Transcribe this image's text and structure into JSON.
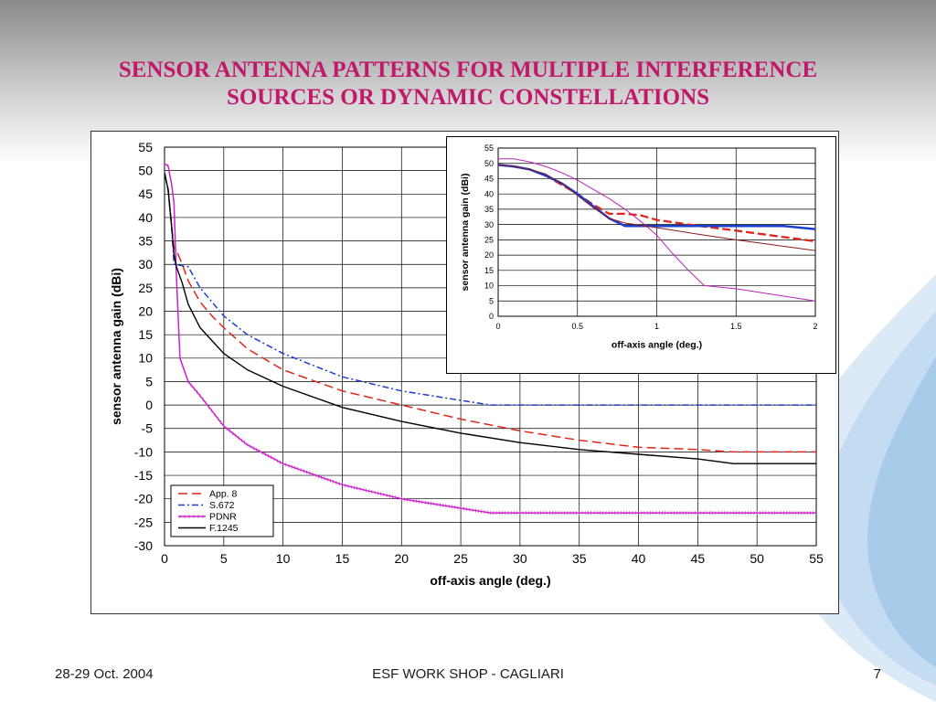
{
  "slide": {
    "title_line1": "SENSOR ANTENNA PATTERNS FOR MULTIPLE INTERFERENCE",
    "title_line2": "SOURCES OR DYNAMIC CONSTELLATIONS",
    "footer_left": "28-29 Oct. 2004",
    "footer_center": "ESF WORK SHOP - CAGLIARI",
    "footer_right": "7"
  },
  "chart_data": [
    {
      "type": "line",
      "xlabel": "off-axis angle (deg.)",
      "ylabel": "sensor antenna gain (dBi)",
      "xlim": [
        0,
        55
      ],
      "ylim": [
        -30,
        55
      ],
      "xticks": [
        0,
        5,
        10,
        15,
        20,
        25,
        30,
        35,
        40,
        45,
        50,
        55
      ],
      "yticks": [
        -30,
        -25,
        -20,
        -15,
        -10,
        -5,
        0,
        5,
        10,
        15,
        20,
        25,
        30,
        35,
        40,
        45,
        50,
        55
      ],
      "grid": true,
      "legend_position": "bottom-left",
      "series": [
        {
          "name": "App. 8",
          "color": "#e0261a",
          "style": "dashed",
          "x": [
            0,
            0.3,
            0.6,
            0.8,
            1,
            1.5,
            2,
            3,
            4,
            5,
            7,
            10,
            15,
            20,
            25,
            30,
            35,
            40,
            45,
            48,
            55
          ],
          "y": [
            49.5,
            46,
            38,
            33.5,
            33,
            30,
            26.5,
            22,
            19,
            16.5,
            12,
            7.5,
            3,
            0,
            -3,
            -5.5,
            -7.5,
            -9,
            -9.5,
            -10,
            -10
          ]
        },
        {
          "name": "S.672",
          "color": "#1a3fd0",
          "style": "dashdot",
          "x": [
            0,
            0.3,
            0.6,
            0.8,
            2,
            3,
            5,
            7,
            10,
            15,
            20,
            25,
            27.5,
            30,
            40,
            55
          ],
          "y": [
            49.5,
            46,
            38,
            30,
            29.5,
            25,
            19,
            15,
            11,
            6,
            3,
            1,
            0,
            0,
            0,
            0
          ]
        },
        {
          "name": "PDNR",
          "color": "#cc22cc",
          "style": "solid-markers",
          "x": [
            0,
            0.3,
            0.6,
            0.8,
            1,
            1.3,
            2,
            3,
            5,
            7,
            10,
            15,
            20,
            25,
            27.5,
            30,
            40,
            55
          ],
          "y": [
            51.5,
            51,
            47,
            43,
            27.5,
            10,
            5,
            2,
            -4.5,
            -8.5,
            -12.5,
            -17,
            -20,
            -22,
            -23,
            -23,
            -23,
            -23
          ]
        },
        {
          "name": "F.1245",
          "color": "#000000",
          "style": "solid",
          "x": [
            0,
            0.3,
            0.6,
            0.8,
            1,
            1.5,
            2,
            3,
            5,
            7,
            10,
            15,
            20,
            25,
            30,
            35,
            40,
            45,
            48,
            55
          ],
          "y": [
            49.5,
            46,
            38,
            32,
            29.5,
            26,
            21.5,
            16.5,
            11,
            7.5,
            4,
            -0.5,
            -3.5,
            -6,
            -8,
            -9.5,
            -10.5,
            -11.5,
            -12.5,
            -12.5
          ]
        }
      ]
    },
    {
      "type": "line",
      "xlabel": "off-axis angle (deg.)",
      "ylabel": "sensor antenna gain (dBi)",
      "xlim": [
        0,
        2
      ],
      "ylim": [
        0,
        55
      ],
      "xticks": [
        0,
        0.5,
        1,
        1.5,
        2
      ],
      "yticks": [
        0,
        5,
        10,
        15,
        20,
        25,
        30,
        35,
        40,
        45,
        50,
        55
      ],
      "grid": true,
      "series": [
        {
          "color": "#e0261a",
          "style": "dashed",
          "x": [
            0,
            0.1,
            0.2,
            0.3,
            0.4,
            0.5,
            0.6,
            0.7,
            0.8,
            0.9,
            1.0,
            1.2,
            1.5,
            2.0
          ],
          "y": [
            49.5,
            49,
            48,
            46,
            43,
            40,
            36.5,
            33.5,
            33.5,
            33,
            31.5,
            30,
            28,
            24.5
          ]
        },
        {
          "color": "#1a3fd0",
          "style": "solid",
          "x": [
            0,
            0.1,
            0.2,
            0.3,
            0.4,
            0.5,
            0.6,
            0.7,
            0.8,
            1.0,
            1.5,
            1.8,
            2.0
          ],
          "y": [
            49.5,
            49,
            48,
            46,
            43.5,
            40,
            36,
            32,
            29.5,
            29.5,
            29.5,
            29.5,
            28.5
          ]
        },
        {
          "color": "#bb22bb",
          "style": "solid",
          "x": [
            0,
            0.1,
            0.2,
            0.3,
            0.4,
            0.5,
            0.6,
            0.7,
            0.8,
            0.9,
            1.0,
            1.1,
            1.2,
            1.3,
            1.5,
            2.0
          ],
          "y": [
            51.5,
            51.5,
            50.5,
            49,
            47,
            44.5,
            41.5,
            38.5,
            35,
            31,
            26.5,
            20.5,
            15,
            10,
            9,
            5
          ]
        },
        {
          "color": "#8b1a1a",
          "style": "solid",
          "x": [
            0,
            0.1,
            0.2,
            0.3,
            0.4,
            0.5,
            0.6,
            0.7,
            0.8,
            1.0,
            1.3,
            1.5,
            2.0
          ],
          "y": [
            49.5,
            49,
            48,
            46.5,
            43.5,
            39.5,
            35.5,
            32,
            30.5,
            29,
            26.5,
            25,
            21.5
          ]
        }
      ]
    }
  ]
}
